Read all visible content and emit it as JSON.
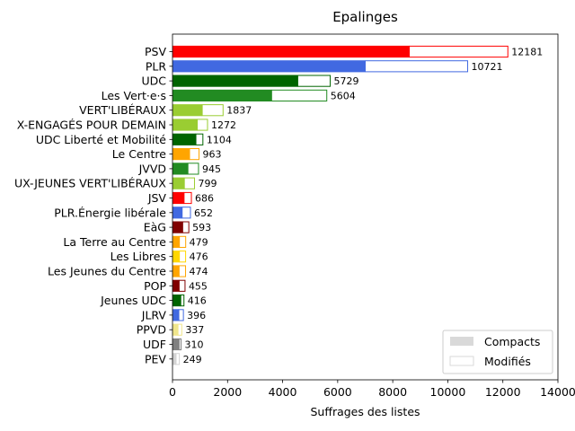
{
  "chart_data": {
    "type": "bar",
    "orientation": "horizontal",
    "stacked": true,
    "title": "Epalinges",
    "xlabel": "Suffrages des listes",
    "ylabel": "",
    "xlim": [
      0,
      14000
    ],
    "xticks": [
      "0",
      "2000",
      "4000",
      "6000",
      "8000",
      "10000",
      "12000",
      "14000"
    ],
    "xtick_values": [
      0,
      2000,
      4000,
      6000,
      8000,
      10000,
      12000,
      14000
    ],
    "grid": false,
    "legend": {
      "position": "bottom-right",
      "entries": [
        {
          "name": "Compacts",
          "style": "filled",
          "color": "#d9d9d9"
        },
        {
          "name": "Modifiés",
          "style": "outline",
          "color": "#d9d9d9"
        }
      ]
    },
    "categories": [
      "PSV",
      "PLR",
      "UDC",
      "Les Vert·e·s",
      "VERT'LIBÉRAUX",
      "ENSEMBLE-ENGAGÉS POUR DEMAIN",
      "UDC Liberté et Mobilité",
      "Le Centre",
      "JVVD",
      "JEUNES-VERT'LIBÉRAUX",
      "JSV",
      "PLR.Énergie libérale",
      "EàG",
      "La Terre au Centre",
      "Les Libres",
      "Les Jeunes du Centre",
      "POP",
      "Jeunes UDC",
      "JLRV",
      "PPVD",
      "UDF",
      "PEV"
    ],
    "label_texts": [
      "PSV",
      "PLR",
      "UDC",
      "Les Vert·e·s",
      "VERT'LIBÉRAUX",
      "X-ENGAGÉS POUR DEMAIN",
      "UDC Liberté et Mobilité",
      "Le Centre",
      "JVVD",
      "UX-JEUNES VERT'LIBÉRAUX",
      "JSV",
      "PLR.Énergie libérale",
      "EàG",
      "La Terre au Centre",
      "Les Libres",
      "Les Jeunes du Centre",
      "POP",
      "Jeunes UDC",
      "JLRV",
      "PPVD",
      "UDF",
      "PEV"
    ],
    "colors": [
      "#ff0000",
      "#4169e1",
      "#006400",
      "#228b22",
      "#9acd32",
      "#9acd32",
      "#006400",
      "#ffa500",
      "#228b22",
      "#9acd32",
      "#ff0000",
      "#4169e1",
      "#800000",
      "#ffa500",
      "#ffd700",
      "#ffa500",
      "#800000",
      "#006400",
      "#4169e1",
      "#f0e68c",
      "#808080",
      "#d3d3d3"
    ],
    "series": [
      {
        "name": "Compacts",
        "values": [
          8600,
          7000,
          4550,
          3600,
          1080,
          900,
          850,
          620,
          560,
          430,
          420,
          350,
          370,
          250,
          250,
          240,
          240,
          300,
          230,
          200,
          240,
          130
        ]
      },
      {
        "name": "Modifiés",
        "values": [
          3581,
          3721,
          1179,
          2004,
          757,
          372,
          254,
          343,
          385,
          369,
          266,
          302,
          223,
          229,
          226,
          234,
          215,
          116,
          166,
          137,
          70,
          119
        ]
      }
    ],
    "totals": [
      12181,
      10721,
      5729,
      5604,
      1837,
      1272,
      1104,
      963,
      945,
      799,
      686,
      652,
      593,
      479,
      476,
      474,
      455,
      416,
      396,
      337,
      310,
      249
    ]
  }
}
